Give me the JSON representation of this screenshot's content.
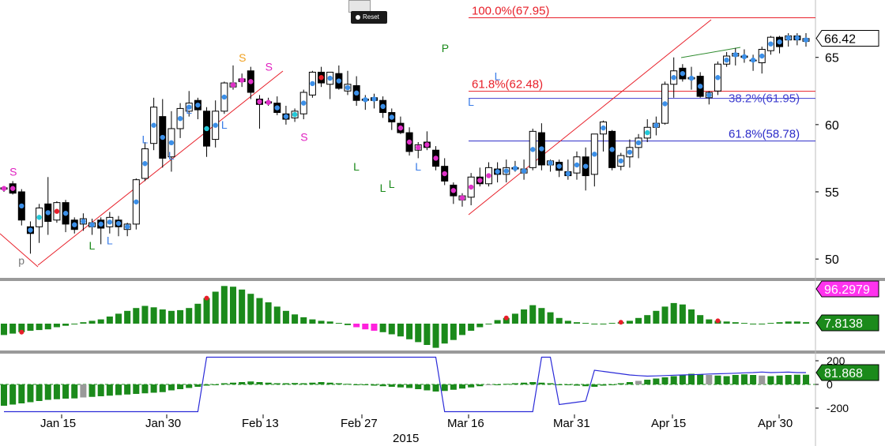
{
  "toolbar": {
    "reset_label": "Reset"
  },
  "chart_data": [
    {
      "type": "candlestick",
      "x_labels": [
        "Jan 15",
        "Jan 30",
        "Feb 13",
        "Feb 27",
        "Mar 16",
        "Mar 31",
        "Apr 15",
        "Apr 30"
      ],
      "x_year_label": "2015",
      "y_ticks": [
        50,
        55,
        60,
        65
      ],
      "ylim": [
        48.6,
        68.8
      ],
      "last_price": "66.42",
      "fib_levels": [
        {
          "label": "100.0%(67.95)",
          "value": 67.95,
          "color": "#e8202a"
        },
        {
          "label": "61.8%(62.48)",
          "value": 62.48,
          "color": "#e8202a"
        },
        {
          "label": "38.2%(61.95)",
          "value": 61.95,
          "color": "#4040d0"
        },
        {
          "label": "61.8%(58.78)",
          "value": 58.78,
          "color": "#2b2bc8"
        }
      ],
      "markers": [
        {
          "text": "S",
          "x": 1,
          "y": 56.2,
          "color": "#e020c0"
        },
        {
          "text": "L",
          "x": 10,
          "y": 50.7,
          "color": "#1a8a1a"
        },
        {
          "text": "L",
          "x": 12,
          "y": 51.1,
          "color": "#3b7ee8"
        },
        {
          "text": "L",
          "x": 16,
          "y": 58.6,
          "color": "#3b7ee8"
        },
        {
          "text": "L",
          "x": 21,
          "y": 60.8,
          "color": "#3b7ee8"
        },
        {
          "text": "L",
          "x": 19,
          "y": 57.4,
          "color": "#3b7ee8"
        },
        {
          "text": "L",
          "x": 25,
          "y": 59.7,
          "color": "#3b7ee8"
        },
        {
          "text": "S",
          "x": 27,
          "y": 64.7,
          "color": "#f0a020"
        },
        {
          "text": "S",
          "x": 30,
          "y": 64.0,
          "color": "#e020c0"
        },
        {
          "text": "S",
          "x": 34,
          "y": 58.8,
          "color": "#e020c0"
        },
        {
          "text": "L",
          "x": 40,
          "y": 56.6,
          "color": "#1a8a1a"
        },
        {
          "text": "L",
          "x": 43,
          "y": 55.0,
          "color": "#1a8a1a"
        },
        {
          "text": "L",
          "x": 44,
          "y": 55.3,
          "color": "#1a8a1a"
        },
        {
          "text": "L",
          "x": 47,
          "y": 56.6,
          "color": "#3b7ee8"
        },
        {
          "text": "P",
          "x": 50,
          "y": 65.4,
          "color": "#1a8a1a"
        },
        {
          "text": "L",
          "x": 53,
          "y": 61.4,
          "color": "#3b7ee8"
        },
        {
          "text": "L",
          "x": 56,
          "y": 63.3,
          "color": "#3b7ee8"
        },
        {
          "text": "p",
          "x": 2,
          "y": 49.6,
          "color": "#777777"
        }
      ],
      "candles": [
        [
          55.2,
          55.4,
          55.0,
          55.3
        ],
        [
          55.6,
          55.8,
          54.8,
          54.9
        ],
        [
          55.0,
          55.2,
          52.5,
          52.9
        ],
        [
          52.4,
          52.8,
          50.4,
          51.9
        ],
        [
          52.4,
          54.1,
          51.2,
          53.8
        ],
        [
          54.1,
          56.1,
          51.8,
          52.8
        ],
        [
          52.9,
          54.3,
          52.7,
          54.2
        ],
        [
          54.2,
          54.4,
          52.0,
          52.6
        ],
        [
          52.9,
          53.1,
          51.9,
          52.2
        ],
        [
          52.6,
          53.4,
          52.1,
          53.0
        ],
        [
          52.4,
          53.0,
          51.8,
          52.7
        ],
        [
          52.9,
          53.1,
          51.1,
          52.3
        ],
        [
          52.4,
          53.5,
          51.9,
          53.1
        ],
        [
          52.9,
          53.2,
          51.7,
          52.4
        ],
        [
          52.2,
          52.7,
          51.7,
          52.6
        ],
        [
          52.6,
          56.0,
          52.2,
          55.9
        ],
        [
          56.0,
          58.7,
          55.8,
          58.2
        ],
        [
          58.6,
          62.0,
          58.1,
          61.3
        ],
        [
          60.6,
          61.9,
          56.8,
          57.5
        ],
        [
          57.6,
          61.0,
          56.5,
          59.7
        ],
        [
          59.7,
          61.6,
          59.0,
          61.2
        ],
        [
          61.0,
          62.5,
          60.6,
          61.6
        ],
        [
          61.8,
          62.0,
          60.4,
          61.1
        ],
        [
          61.0,
          61.3,
          57.6,
          58.4
        ],
        [
          58.9,
          61.8,
          58.3,
          61.0
        ],
        [
          61.0,
          63.2,
          60.8,
          63.1
        ],
        [
          62.8,
          64.4,
          62.6,
          63.1
        ],
        [
          63.4,
          63.8,
          62.8,
          63.2
        ],
        [
          64.0,
          64.3,
          61.9,
          62.4
        ],
        [
          61.9,
          62.2,
          59.7,
          61.5
        ],
        [
          61.7,
          62.0,
          61.4,
          61.6
        ],
        [
          61.6,
          62.1,
          60.7,
          60.9
        ],
        [
          60.8,
          61.4,
          60.0,
          60.4
        ],
        [
          60.5,
          61.2,
          60.2,
          61.0
        ],
        [
          60.8,
          62.6,
          60.4,
          62.4
        ],
        [
          62.2,
          64.0,
          62.0,
          63.9
        ],
        [
          63.9,
          64.3,
          62.8,
          63.1
        ],
        [
          63.0,
          63.9,
          61.9,
          63.9
        ],
        [
          63.8,
          64.4,
          62.6,
          62.7
        ],
        [
          62.5,
          64.0,
          62.2,
          63.0
        ],
        [
          62.9,
          63.6,
          61.4,
          61.8
        ],
        [
          61.8,
          62.2,
          61.1,
          61.9
        ],
        [
          62.0,
          62.3,
          61.2,
          61.8
        ],
        [
          61.8,
          62.1,
          60.5,
          60.9
        ],
        [
          60.9,
          61.2,
          59.6,
          60.2
        ],
        [
          60.1,
          60.6,
          59.3,
          59.4
        ],
        [
          59.4,
          59.8,
          57.7,
          58.0
        ],
        [
          58.1,
          58.7,
          57.5,
          58.5
        ],
        [
          58.7,
          59.5,
          58.1,
          58.3
        ],
        [
          58.1,
          58.4,
          56.6,
          56.9
        ],
        [
          56.9,
          57.5,
          55.5,
          55.8
        ],
        [
          55.5,
          55.7,
          54.1,
          54.7
        ],
        [
          54.4,
          54.9,
          53.9,
          54.7
        ],
        [
          54.6,
          56.4,
          54.0,
          56.1
        ],
        [
          56.1,
          56.8,
          55.4,
          55.6
        ],
        [
          55.6,
          57.2,
          55.4,
          56.8
        ],
        [
          56.7,
          57.2,
          55.7,
          56.3
        ],
        [
          56.3,
          57.4,
          55.7,
          56.8
        ],
        [
          56.8,
          57.3,
          56.5,
          56.7
        ],
        [
          56.4,
          57.4,
          55.9,
          56.7
        ],
        [
          56.8,
          59.7,
          56.6,
          59.5
        ],
        [
          59.4,
          60.1,
          56.6,
          57.0
        ],
        [
          57.0,
          57.4,
          56.5,
          57.3
        ],
        [
          57.2,
          57.4,
          56.1,
          56.6
        ],
        [
          56.5,
          57.4,
          55.9,
          56.2
        ],
        [
          56.4,
          58.0,
          55.9,
          57.6
        ],
        [
          57.6,
          58.3,
          55.1,
          56.2
        ],
        [
          56.3,
          59.3,
          55.4,
          59.3
        ],
        [
          59.3,
          60.3,
          58.0,
          60.2
        ],
        [
          59.5,
          59.6,
          56.6,
          56.8
        ],
        [
          56.9,
          57.9,
          56.6,
          57.7
        ],
        [
          57.6,
          58.9,
          56.8,
          58.3
        ],
        [
          58.3,
          59.3,
          57.5,
          59.0
        ],
        [
          59.0,
          60.4,
          58.7,
          59.8
        ],
        [
          59.8,
          60.6,
          59.2,
          60.1
        ],
        [
          60.1,
          63.2,
          60.0,
          63.0
        ],
        [
          63.0,
          65.0,
          62.0,
          64.0
        ],
        [
          64.2,
          64.5,
          63.2,
          63.4
        ],
        [
          63.4,
          64.3,
          62.6,
          63.5
        ],
        [
          63.6,
          63.9,
          62.0,
          62.1
        ],
        [
          62.0,
          62.5,
          61.5,
          62.4
        ],
        [
          62.5,
          64.7,
          62.2,
          64.5
        ],
        [
          64.5,
          65.4,
          64.3,
          65.1
        ],
        [
          65.1,
          65.7,
          64.4,
          65.3
        ],
        [
          65.1,
          65.6,
          64.6,
          65.0
        ],
        [
          64.8,
          65.2,
          64.0,
          64.8
        ],
        [
          64.6,
          65.8,
          63.8,
          65.6
        ],
        [
          65.5,
          66.6,
          65.2,
          66.5
        ],
        [
          66.5,
          66.6,
          65.3,
          65.8
        ],
        [
          66.3,
          66.8,
          65.8,
          66.6
        ],
        [
          66.6,
          66.8,
          65.9,
          66.3
        ],
        [
          66.2,
          66.8,
          65.8,
          66.4
        ]
      ]
    },
    {
      "type": "bar",
      "last_values": [
        "96.2979",
        "7.8138"
      ],
      "values": [
        -1.6,
        -1.4,
        -1.2,
        -1.0,
        -0.9,
        -0.8,
        -0.5,
        -0.3,
        0.0,
        0.2,
        0.4,
        0.6,
        1.0,
        1.4,
        1.8,
        2.2,
        2.5,
        2.3,
        2.0,
        1.8,
        1.9,
        2.2,
        2.8,
        3.6,
        4.5,
        5.3,
        5.2,
        4.8,
        4.2,
        3.6,
        3.0,
        2.4,
        1.8,
        1.3,
        0.9,
        0.6,
        0.4,
        0.3,
        0.1,
        -0.2,
        -0.5,
        -0.8,
        -1.0,
        -1.2,
        -1.5,
        -1.8,
        -2.2,
        -2.6,
        -3.0,
        -3.4,
        -2.8,
        -2.3,
        -1.6,
        -1.0,
        -0.5,
        0.0,
        0.5,
        0.8,
        1.4,
        2.0,
        2.6,
        2.2,
        1.6,
        0.8,
        0.4,
        0.2,
        0.1,
        0.0,
        0.0,
        0.1,
        0.2,
        0.4,
        0.8,
        1.2,
        1.8,
        2.4,
        2.9,
        2.7,
        2.0,
        1.2,
        0.6,
        0.4,
        0.3,
        0.2,
        0.1,
        0.0,
        0.0,
        0.1,
        0.2,
        0.3,
        0.3,
        0.2
      ]
    },
    {
      "type": "bar_line",
      "y_ticks": [
        200,
        0,
        -200
      ],
      "last_value": "81.868",
      "values": [
        -180,
        -170,
        -160,
        -150,
        -140,
        -130,
        -125,
        -120,
        -118,
        -110,
        -105,
        -100,
        -95,
        -90,
        -85,
        -80,
        -75,
        -70,
        -65,
        -50,
        -40,
        -30,
        -20,
        -10,
        0,
        10,
        15,
        20,
        25,
        20,
        15,
        10,
        10,
        12,
        10,
        15,
        20,
        15,
        10,
        5,
        0,
        -5,
        -10,
        -15,
        -20,
        -25,
        -30,
        -40,
        -50,
        -60,
        -55,
        -45,
        -35,
        -25,
        -15,
        -5,
        0,
        5,
        10,
        15,
        20,
        15,
        10,
        0,
        -5,
        -10,
        -15,
        -20,
        -10,
        0,
        10,
        20,
        30,
        40,
        50,
        60,
        70,
        80,
        90,
        85,
        80,
        75,
        70,
        80,
        85,
        80,
        75,
        70,
        75,
        80,
        82,
        81.868
      ],
      "line": [
        -230,
        -230,
        -230,
        -230,
        -230,
        -230,
        -230,
        -230,
        -230,
        -230,
        -230,
        -230,
        -230,
        -230,
        -230,
        -230,
        -230,
        -230,
        -230,
        -230,
        -230,
        -230,
        -230,
        230,
        230,
        230,
        230,
        230,
        230,
        230,
        230,
        230,
        230,
        230,
        230,
        230,
        230,
        230,
        230,
        230,
        230,
        230,
        230,
        230,
        230,
        230,
        230,
        230,
        230,
        230,
        -230,
        -230,
        -230,
        -230,
        -230,
        -230,
        -230,
        -230,
        -230,
        -230,
        -230,
        230,
        230,
        -170,
        -160,
        -150,
        -140,
        120,
        110,
        100,
        90,
        80,
        75,
        70,
        72,
        75,
        78,
        80,
        82,
        85,
        88,
        90,
        92,
        95,
        98,
        100,
        105,
        100,
        102,
        104,
        100,
        100
      ]
    }
  ]
}
